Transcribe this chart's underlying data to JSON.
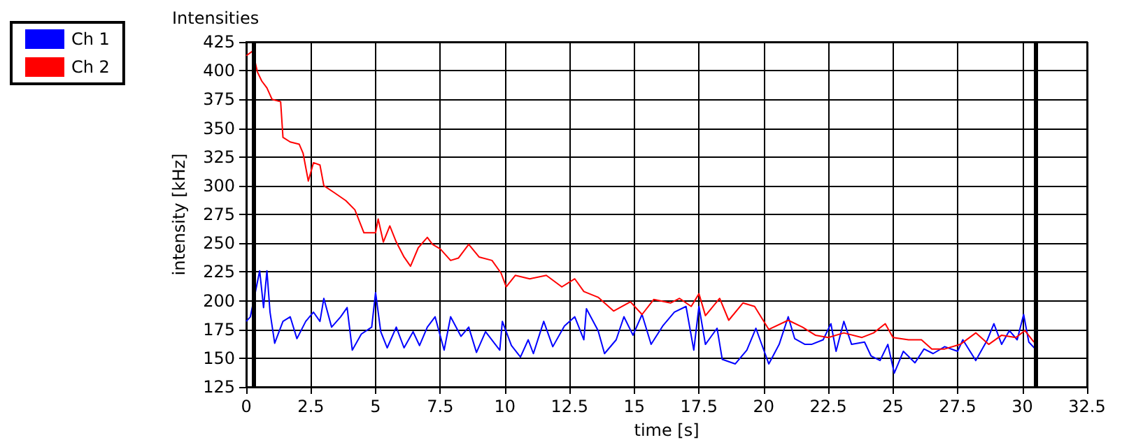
{
  "chart_data": {
    "type": "line",
    "title": "Intensities",
    "xlabel": "time [s]",
    "ylabel": "intensity [kHz]",
    "xlim": [
      0,
      32.5
    ],
    "xticks": [
      0,
      2.5,
      5,
      7.5,
      10,
      12.5,
      15,
      17.5,
      20,
      22.5,
      25,
      27.5,
      30,
      32.5
    ],
    "ylim": [
      125,
      425
    ],
    "yticks": [
      125,
      150,
      175,
      200,
      225,
      250,
      275,
      300,
      325,
      350,
      375,
      400,
      425
    ],
    "grid": true,
    "legend": "top left",
    "marker": "none",
    "line_style": "solid",
    "ref_lines": [
      {
        "axis": "x",
        "value": 0.3,
        "color": "#000000"
      },
      {
        "axis": "x",
        "value": 30.5,
        "color": "#000000"
      }
    ],
    "series": [
      {
        "name": "Ch 1",
        "color": "#0000ff",
        "x": [
          0,
          0.16,
          0.52,
          0.67,
          0.8,
          0.92,
          1.1,
          1.42,
          1.7,
          1.96,
          2.3,
          2.6,
          2.85,
          3.0,
          3.3,
          3.65,
          3.9,
          4.1,
          4.45,
          4.85,
          5.0,
          5.2,
          5.45,
          5.8,
          6.1,
          6.45,
          6.7,
          7.0,
          7.3,
          7.65,
          7.9,
          8.3,
          8.6,
          8.9,
          9.25,
          9.8,
          9.9,
          10.25,
          10.6,
          10.9,
          11.1,
          11.5,
          11.85,
          12.3,
          12.7,
          13.05,
          13.15,
          13.6,
          13.85,
          14.3,
          14.6,
          14.95,
          15.3,
          15.65,
          16.1,
          16.55,
          17.0,
          17.3,
          17.5,
          17.75,
          18.2,
          18.4,
          18.9,
          19.35,
          19.7,
          20.2,
          20.6,
          20.95,
          21.2,
          21.6,
          21.85,
          22.3,
          22.6,
          22.8,
          23.1,
          23.4,
          23.9,
          24.15,
          24.5,
          24.8,
          25.05,
          25.4,
          25.85,
          26.2,
          26.55,
          27.0,
          27.5,
          27.7,
          28.2,
          28.65,
          28.9,
          29.2,
          29.5,
          29.8,
          30.05,
          30.25,
          30.5
        ],
        "values": [
          182,
          186,
          226,
          194,
          226,
          190,
          163,
          182,
          186,
          167,
          182,
          190,
          182,
          202,
          177,
          186,
          194,
          157,
          171,
          177,
          207,
          173,
          159,
          177,
          159,
          173,
          161,
          177,
          186,
          157,
          186,
          169,
          177,
          155,
          173,
          157,
          182,
          161,
          151,
          166,
          154,
          182,
          160,
          178,
          186,
          166,
          193,
          174,
          154,
          166,
          186,
          170,
          188,
          162,
          178,
          190,
          195,
          157,
          195,
          162,
          176,
          149,
          145,
          157,
          176,
          145,
          162,
          186,
          167,
          162,
          162,
          166,
          180,
          156,
          182,
          162,
          164,
          152,
          148,
          162,
          137,
          156,
          146,
          158,
          154,
          160,
          156,
          166,
          148,
          166,
          180,
          162,
          174,
          166,
          188,
          164,
          158
        ]
      },
      {
        "name": "Ch 2",
        "color": "#ff0000",
        "x": [
          0,
          0.25,
          0.43,
          0.6,
          0.8,
          1.0,
          1.33,
          1.42,
          1.7,
          2.05,
          2.2,
          2.4,
          2.6,
          2.85,
          3.0,
          3.4,
          3.85,
          4.2,
          4.55,
          5.0,
          5.1,
          5.3,
          5.55,
          5.8,
          6.1,
          6.35,
          6.65,
          7.0,
          7.2,
          7.5,
          7.9,
          8.2,
          8.6,
          9.0,
          9.5,
          9.85,
          10.05,
          10.4,
          10.96,
          11.6,
          12.2,
          12.7,
          13.05,
          13.6,
          14.2,
          14.85,
          15.3,
          15.75,
          16.4,
          16.75,
          17.2,
          17.5,
          17.75,
          18.3,
          18.65,
          19.2,
          19.65,
          20.2,
          20.95,
          21.5,
          22.0,
          22.5,
          23.1,
          23.8,
          24.25,
          24.7,
          25.0,
          25.6,
          26.1,
          26.5,
          27.0,
          27.6,
          28.2,
          28.7,
          29.2,
          29.75,
          30.1,
          30.45
        ],
        "values": [
          413,
          417,
          399,
          391,
          385,
          375,
          373,
          342,
          338,
          336,
          328,
          304,
          320,
          318,
          300,
          294,
          287,
          279,
          259,
          259,
          271,
          251,
          265,
          251,
          238,
          230,
          246,
          255,
          249,
          245,
          235,
          237,
          249,
          238,
          235,
          224,
          212,
          222,
          219,
          222,
          212,
          219,
          208,
          203,
          191,
          199,
          188,
          201,
          198,
          202,
          195,
          206,
          187,
          202,
          183,
          198,
          195,
          175,
          183,
          177,
          170,
          168,
          172,
          168,
          172,
          180,
          168,
          166,
          166,
          158,
          158,
          162,
          172,
          162,
          170,
          168,
          174,
          164
        ]
      }
    ]
  }
}
